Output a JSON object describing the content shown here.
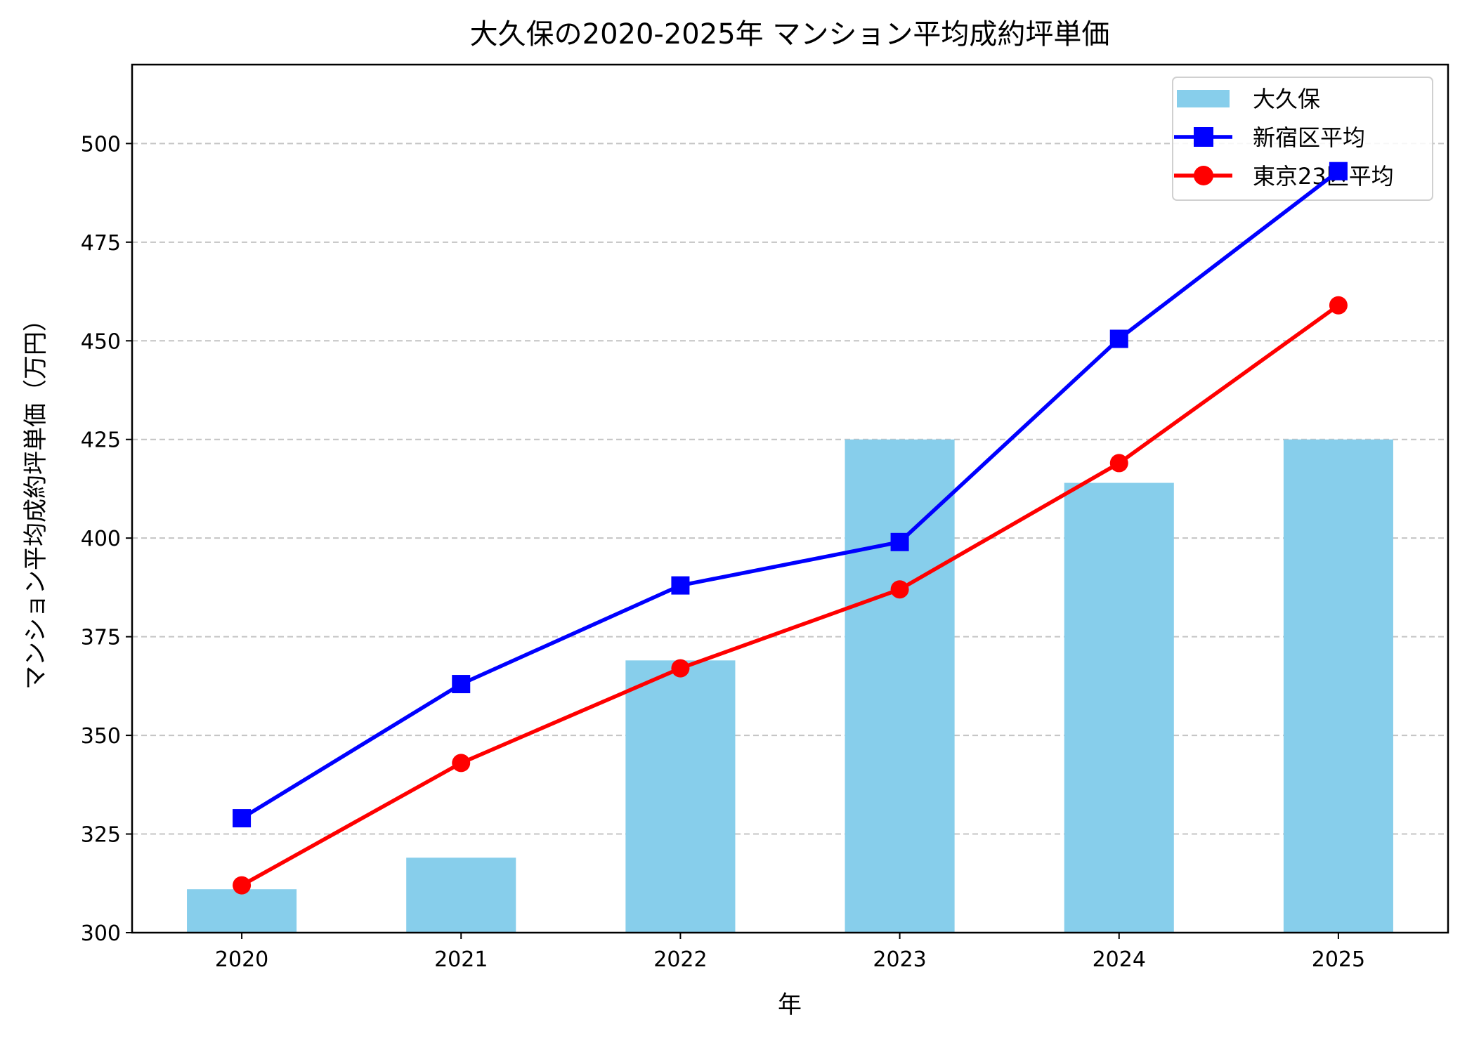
{
  "chart_data": {
    "type": "bar+line",
    "title": "大久保の2020-2025年 マンション平均成約坪単価",
    "xlabel": "年",
    "ylabel": "マンション平均成約坪単価（万円）",
    "categories": [
      "2020",
      "2021",
      "2022",
      "2023",
      "2024",
      "2025"
    ],
    "ylim": [
      300,
      520
    ],
    "yticks": [
      300,
      325,
      350,
      375,
      400,
      425,
      450,
      475,
      500
    ],
    "grid": "y dashed",
    "legend_position": "top-right",
    "series": [
      {
        "name": "大久保",
        "kind": "bar",
        "color": "#87CEEB",
        "values": [
          311,
          319,
          369,
          425,
          414,
          425
        ]
      },
      {
        "name": "新宿区平均",
        "kind": "line",
        "marker": "square",
        "color": "#0000FF",
        "values": [
          329,
          363,
          388,
          399,
          450.5,
          493
        ]
      },
      {
        "name": "東京23区平均",
        "kind": "line",
        "marker": "circle",
        "color": "#FF0000",
        "values": [
          312,
          343,
          367,
          387,
          419,
          459
        ]
      }
    ]
  }
}
